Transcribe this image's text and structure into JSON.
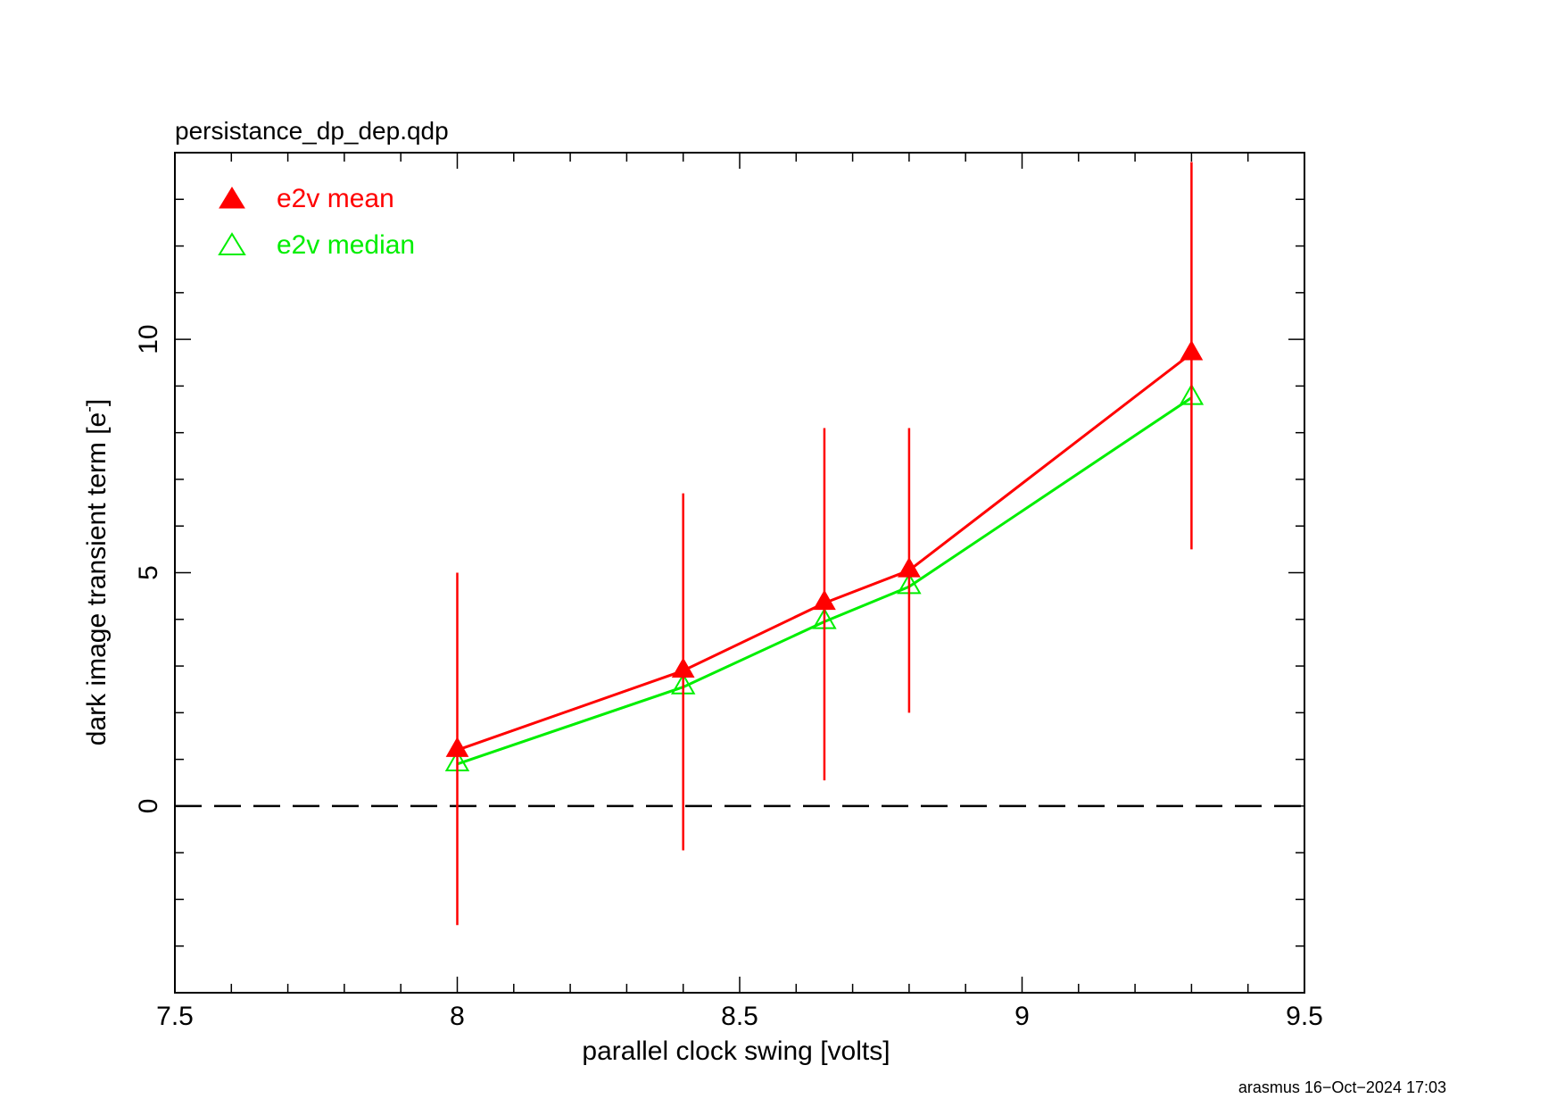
{
  "chart_data": {
    "type": "line",
    "title": "persistance_dp_dep.qdp",
    "xlabel": "parallel clock swing [volts]",
    "ylabel_main": "dark image transient term [e",
    "ylabel_sup": "-",
    "ylabel_close": "]",
    "xlim": [
      7.5,
      9.5
    ],
    "ylim": [
      -4,
      14
    ],
    "x_ticks": [
      7.5,
      8,
      8.5,
      9,
      9.5
    ],
    "x_tick_labels": [
      "7.5",
      "8",
      "8.5",
      "9",
      "9.5"
    ],
    "y_ticks": [
      0,
      5,
      10
    ],
    "y_tick_labels": [
      "0",
      "5",
      "10"
    ],
    "x_minor_step": 0.1,
    "y_minor_step": 1,
    "reference_line": {
      "y": 0,
      "style": "dashed",
      "color": "#000000"
    },
    "legend_position": "top-left",
    "grid": false,
    "series": [
      {
        "name": "e2v mean",
        "color": "#ff0000",
        "marker": "filled-triangle",
        "x": [
          8.0,
          8.4,
          8.65,
          8.8,
          9.3
        ],
        "y": [
          1.2,
          2.9,
          4.35,
          5.05,
          9.7
        ],
        "yerr_low": [
          -2.55,
          -0.95,
          0.55,
          2.0,
          5.5
        ],
        "yerr_high": [
          5.0,
          6.7,
          8.1,
          8.1,
          13.8
        ]
      },
      {
        "name": "e2v median",
        "color": "#00ee00",
        "marker": "open-triangle",
        "x": [
          8.0,
          8.4,
          8.65,
          8.8,
          9.3
        ],
        "y": [
          0.9,
          2.55,
          3.95,
          4.7,
          8.75
        ]
      }
    ]
  },
  "footer": {
    "user": "arasmus",
    "date": "16−Oct−2024 17:03"
  }
}
